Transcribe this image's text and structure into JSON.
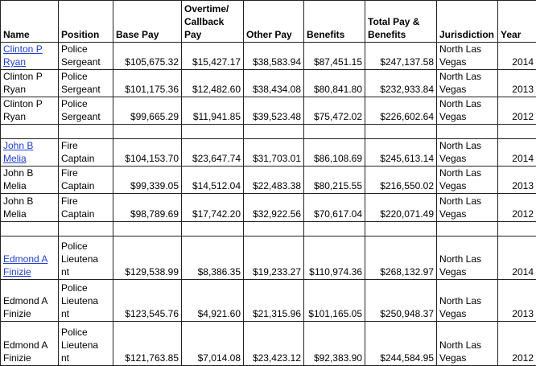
{
  "table": {
    "header": [
      "Name",
      "Position",
      "Base Pay",
      "Overtime/ Callback Pay",
      "Other Pay",
      "Benefits",
      "Total Pay & Benefits",
      "Jurisdiction",
      "Year"
    ],
    "groups": [
      [
        {
          "link": true,
          "cells": [
            "Clinton P Ryan",
            "Police Sergeant",
            "$105,675.32",
            "$15,427.17",
            "$38,583.94",
            "$87,451.15",
            "$247,137.58",
            "North Las Vegas",
            "2014"
          ]
        },
        {
          "link": false,
          "cells": [
            "Clinton P Ryan",
            "Police Sergeant",
            "$101,175.36",
            "$12,482.60",
            "$38,434.08",
            "$80,841.80",
            "$232,933.84",
            "North Las Vegas",
            "2013"
          ]
        },
        {
          "link": false,
          "cells": [
            "Clinton P Ryan",
            "Police Sergeant",
            "$99,665.29",
            "$11,941.85",
            "$39,523.48",
            "$75,472.02",
            "$226,602.64",
            "North Las Vegas",
            "2012"
          ]
        }
      ],
      [
        {
          "link": true,
          "cells": [
            "John B Melia",
            "Fire Captain",
            "$104,153.70",
            "$23,647.74",
            "$31,703.01",
            "$86,108.69",
            "$245,613.14",
            "North Las Vegas",
            "2014"
          ]
        },
        {
          "link": false,
          "cells": [
            "John B Melia",
            "Fire Captain",
            "$99,339.05",
            "$14,512.04",
            "$22,483.38",
            "$80,215.55",
            "$216,550.02",
            "North Las Vegas",
            "2013"
          ]
        },
        {
          "link": false,
          "cells": [
            "John B Melia",
            "Fire Captain",
            "$98,789.69",
            "$17,742.20",
            "$32,922.56",
            "$70,617.04",
            "$220,071.49",
            "North Las Vegas",
            "2012"
          ]
        }
      ],
      [
        {
          "link": true,
          "cells": [
            "Edmond A Finizie",
            "Police Lieutenant",
            "$129,538.99",
            "$8,386.35",
            "$19,233.27",
            "$110,974.36",
            "$268,132.97",
            "North Las Vegas",
            "2014"
          ]
        },
        {
          "link": false,
          "cells": [
            "Edmond A Finizie",
            "Police Lieutenant",
            "$123,545.76",
            "$4,921.60",
            "$21,315.96",
            "$101,165.05",
            "$250,948.37",
            "North Las Vegas",
            "2013"
          ]
        },
        {
          "link": false,
          "cells": [
            "Edmond A Finizie",
            "Police Lieutenant",
            "$121,763.85",
            "$7,014.08",
            "$23,423.12",
            "$92,383.90",
            "$244,584.95",
            "North Las Vegas",
            "2012"
          ]
        }
      ]
    ]
  }
}
